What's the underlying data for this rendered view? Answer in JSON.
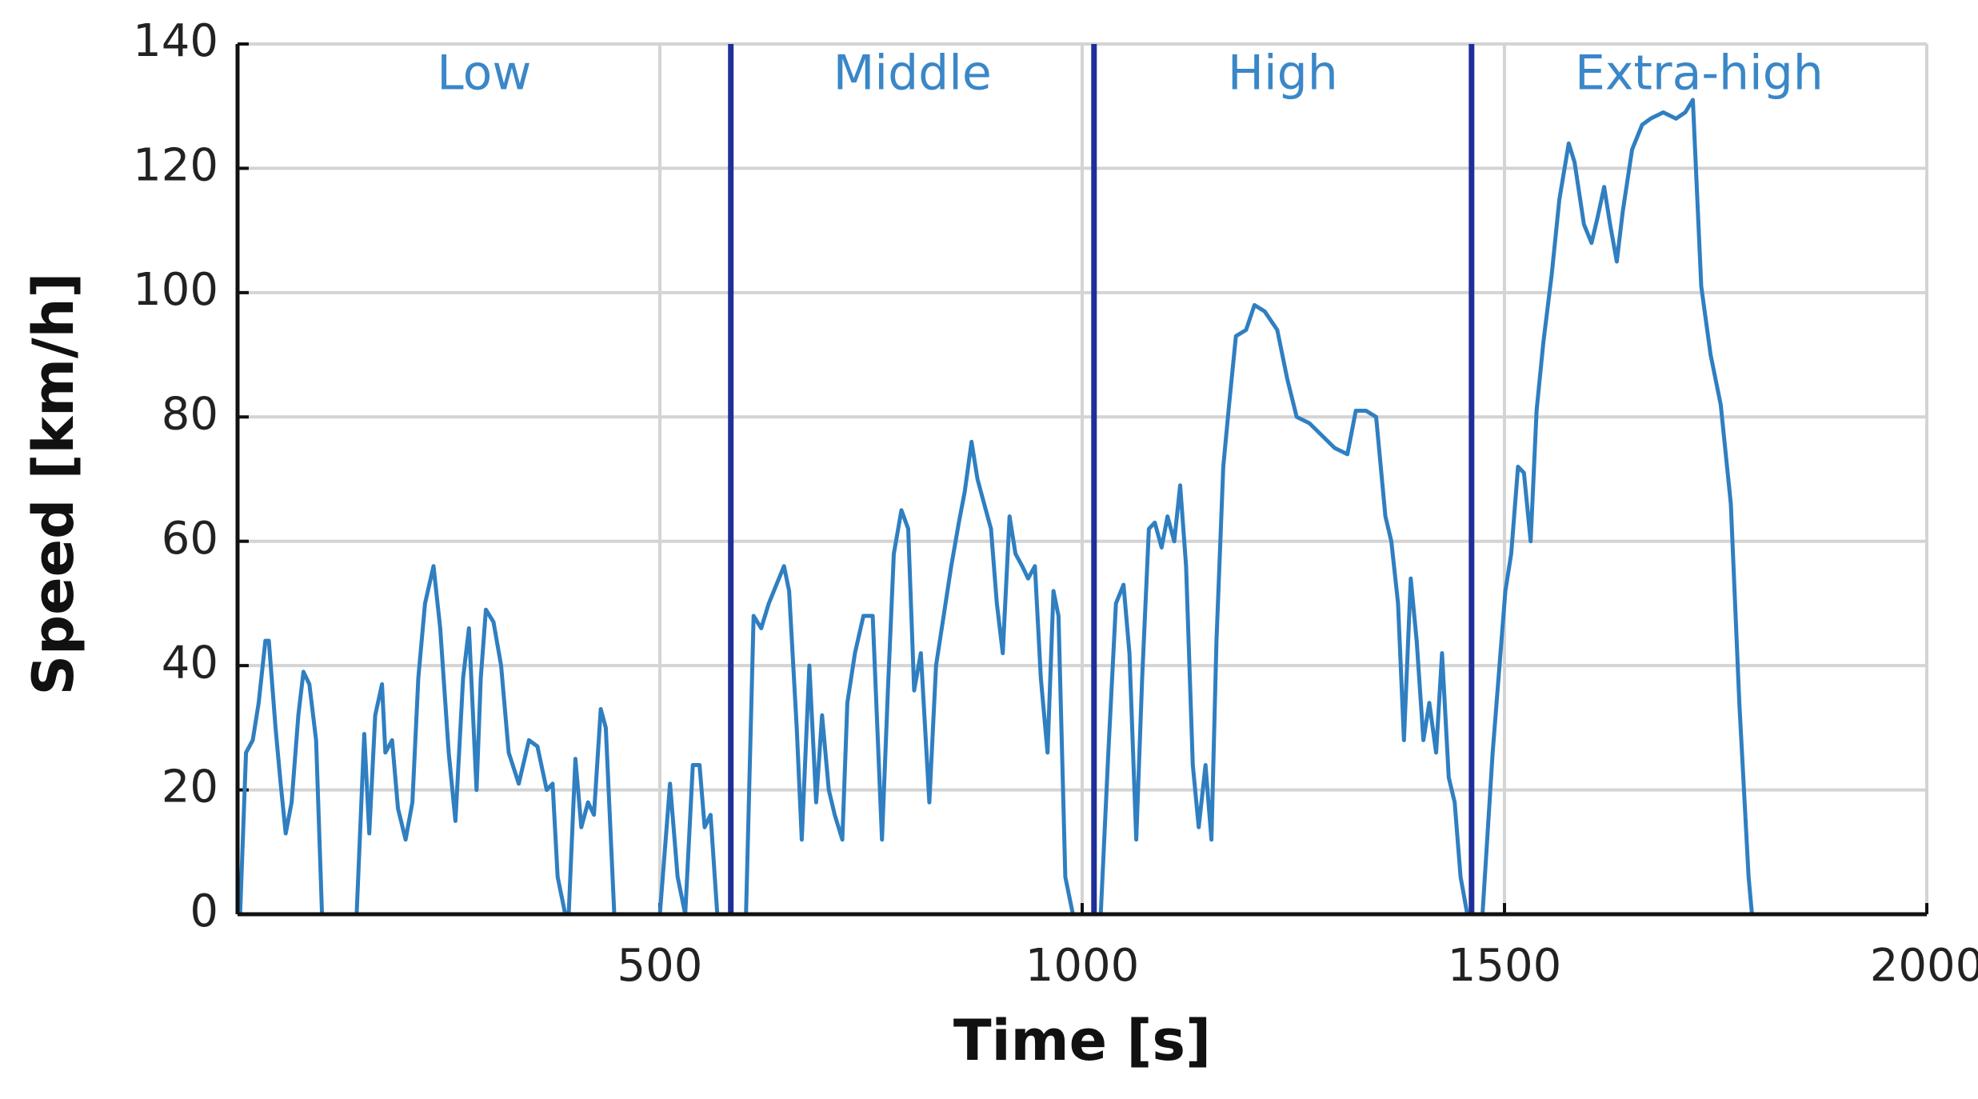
{
  "chart_data": {
    "type": "line",
    "x_label": "Time [s]",
    "y_label": "Speed [km/h]",
    "xlim": [
      0,
      2000
    ],
    "xticks": [
      500,
      1000,
      1500,
      2000
    ],
    "ylim": [
      0,
      140
    ],
    "yticks": [
      0,
      20,
      40,
      60,
      80,
      100,
      120,
      140
    ],
    "grid": true,
    "color": "#2f7fc1",
    "phase_labels": [
      "Low",
      "Middle",
      "High",
      "Extra-high"
    ],
    "phase_label_color": "#3a87c8",
    "phase_boundaries": [
      584,
      1014,
      1461
    ],
    "boundary_color": "#1f2f9a",
    "x": [
      3,
      10,
      18,
      25,
      33,
      37,
      45,
      51,
      57,
      64,
      72,
      78,
      85,
      93,
      100,
      141,
      150,
      156,
      163,
      171,
      175,
      183,
      190,
      199,
      207,
      214,
      222,
      232,
      240,
      250,
      258,
      267,
      274,
      283,
      288,
      294,
      303,
      312,
      321,
      333,
      345,
      355,
      366,
      373,
      379,
      388,
      392,
      400,
      407,
      415,
      422,
      430,
      436,
      446,
      500,
      512,
      521,
      530,
      539,
      547,
      553,
      560,
      568,
      602,
      611,
      620,
      629,
      638,
      647,
      653,
      662,
      668,
      677,
      685,
      692,
      700,
      707,
      716,
      722,
      731,
      741,
      752,
      763,
      770,
      777,
      786,
      794,
      801,
      809,
      819,
      827,
      836,
      845,
      854,
      861,
      869,
      876,
      884,
      892,
      899,
      906,
      914,
      921,
      929,
      936,
      944,
      951,
      959,
      966,
      972,
      980,
      989,
      1022,
      1031,
      1040,
      1049,
      1056,
      1064,
      1071,
      1079,
      1086,
      1094,
      1101,
      1109,
      1116,
      1123,
      1131,
      1138,
      1146,
      1153,
      1159,
      1167,
      1174,
      1182,
      1194,
      1204,
      1216,
      1231,
      1243,
      1254,
      1269,
      1284,
      1299,
      1314,
      1324,
      1336,
      1348,
      1359,
      1366,
      1374,
      1381,
      1389,
      1396,
      1404,
      1411,
      1419,
      1426,
      1434,
      1441,
      1448,
      1456,
      1474,
      1486,
      1501,
      1508,
      1516,
      1523,
      1531,
      1538,
      1546,
      1556,
      1565,
      1576,
      1583,
      1594,
      1603,
      1610,
      1618,
      1625,
      1633,
      1640,
      1651,
      1663,
      1673,
      1688,
      1703,
      1714,
      1723,
      1733,
      1744,
      1756,
      1768,
      1778,
      1789,
      1793
    ],
    "values": [
      0,
      26,
      28,
      34,
      44,
      44,
      30,
      21,
      13,
      18,
      32,
      39,
      37,
      28,
      0,
      0,
      29,
      13,
      32,
      37,
      26,
      28,
      17,
      12,
      18,
      38,
      50,
      56,
      46,
      26,
      15,
      38,
      46,
      20,
      38,
      49,
      47,
      40,
      26,
      21,
      28,
      27,
      20,
      21,
      6,
      0,
      0,
      25,
      14,
      18,
      16,
      33,
      30,
      0,
      0,
      21,
      6,
      0,
      24,
      24,
      14,
      16,
      0,
      0,
      48,
      46,
      50,
      53,
      56,
      52,
      30,
      12,
      40,
      18,
      32,
      20,
      16,
      12,
      34,
      42,
      48,
      48,
      12,
      36,
      58,
      65,
      62,
      36,
      42,
      18,
      40,
      48,
      56,
      63,
      68,
      76,
      70,
      66,
      62,
      50,
      42,
      64,
      58,
      56,
      54,
      56,
      38,
      26,
      52,
      48,
      6,
      0,
      0,
      26,
      50,
      53,
      42,
      12,
      38,
      62,
      63,
      59,
      64,
      60,
      69,
      56,
      24,
      14,
      24,
      12,
      44,
      72,
      82,
      93,
      94,
      98,
      97,
      94,
      86,
      80,
      79,
      77,
      75,
      74,
      81,
      81,
      80,
      64,
      60,
      50,
      28,
      54,
      44,
      28,
      34,
      26,
      42,
      22,
      18,
      6,
      0,
      0,
      26,
      52,
      58,
      72,
      71,
      60,
      81,
      92,
      103,
      115,
      124,
      121,
      111,
      108,
      112,
      117,
      111,
      105,
      113,
      123,
      127,
      128,
      129,
      128,
      129,
      131,
      101,
      90,
      82,
      66,
      34,
      6,
      0
    ]
  }
}
